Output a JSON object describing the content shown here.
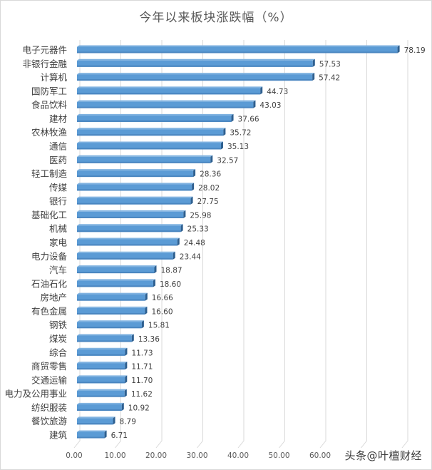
{
  "chart_data": {
    "type": "bar",
    "orientation": "horizontal",
    "style": "3d-clustered-bar",
    "title": "今年以来板块涨跌幅（%）",
    "xlabel": "",
    "ylabel": "",
    "xlim": [
      0,
      80
    ],
    "x_ticks": [
      "0.00",
      "10.00",
      "20.00",
      "30.00",
      "40.00",
      "50.00",
      "60.00",
      "70.00",
      "80.00"
    ],
    "x_ticks_visible_labels": [
      "0.00",
      "10.00",
      "20.00",
      "30.00",
      "40.00",
      "50.00",
      "60.00"
    ],
    "grid": "vertical",
    "legend": null,
    "bar_color": "#5b9bd5",
    "categories": [
      "电子元器件",
      "非银行金融",
      "计算机",
      "国防军工",
      "食品饮料",
      "建材",
      "农林牧渔",
      "通信",
      "医药",
      "轻工制造",
      "传媒",
      "银行",
      "基础化工",
      "机械",
      "家电",
      "电力设备",
      "汽车",
      "石油石化",
      "房地产",
      "有色金属",
      "钢铁",
      "煤炭",
      "综合",
      "商贸零售",
      "交通运输",
      "电力及公用事业",
      "纺织服装",
      "餐饮旅游",
      "建筑"
    ],
    "values": [
      78.19,
      57.53,
      57.42,
      44.73,
      43.03,
      37.66,
      35.72,
      35.13,
      32.57,
      28.36,
      28.02,
      27.75,
      25.98,
      25.33,
      24.48,
      23.44,
      18.87,
      18.6,
      16.66,
      16.6,
      15.81,
      13.36,
      11.73,
      11.71,
      11.7,
      11.62,
      10.92,
      8.79,
      6.71
    ],
    "value_labels": [
      "78.19",
      "57.53",
      "57.42",
      "44.73",
      "43.03",
      "37.66",
      "35.72",
      "35.13",
      "32.57",
      "28.36",
      "28.02",
      "27.75",
      "25.98",
      "25.33",
      "24.48",
      "23.44",
      "18.87",
      "18.60",
      "16.66",
      "16.60",
      "15.81",
      "13.36",
      "11.73",
      "11.71",
      "11.70",
      "11.62",
      "10.92",
      "8.79",
      "6.71"
    ]
  },
  "watermark": "头条@叶檀财经",
  "colors": {
    "bar_face": "#5b9bd5",
    "bar_top": "#7fb2e0",
    "bar_side": "#2e5f8f",
    "grid": "#d9d9d9",
    "title": "#595959",
    "text": "#404040"
  }
}
